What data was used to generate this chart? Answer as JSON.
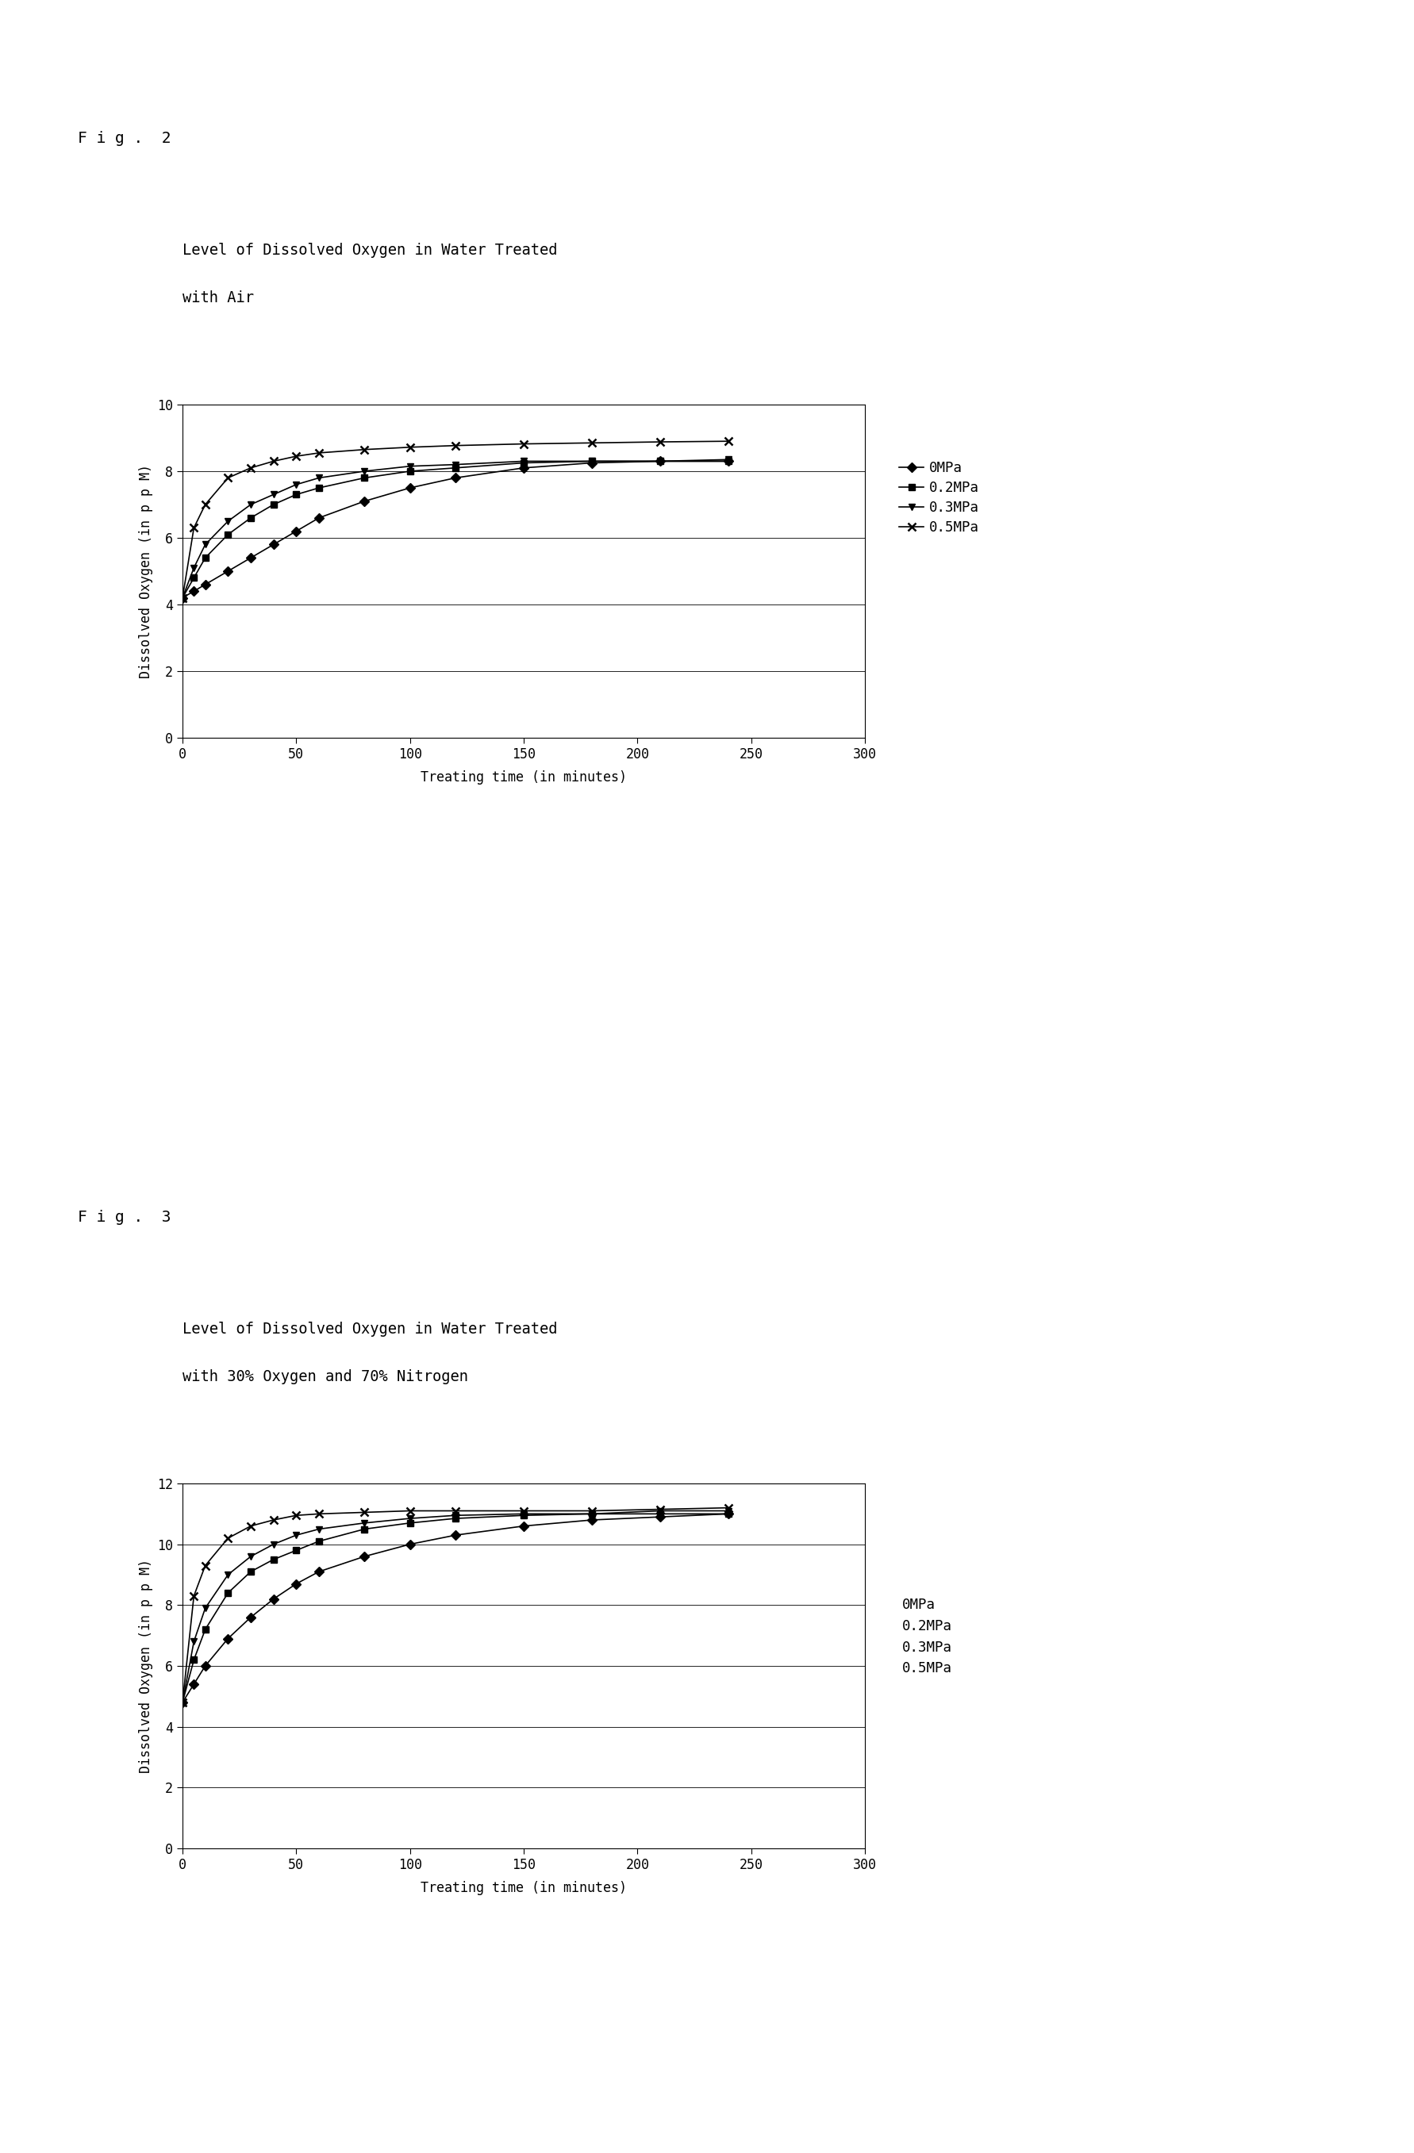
{
  "fig2_title_line1": "Level of Dissolved Oxygen in Water Treated",
  "fig2_title_line2": "with Air",
  "fig3_title_line1": "Level of Dissolved Oxygen in Water Treated",
  "fig3_title_line2": "with 30% Oxygen and 70% Nitrogen",
  "xlabel": "Treating time (in minutes)",
  "ylabel": "Dissolved Oxygen (in p p M)",
  "fig2_label": "F i g .  2",
  "fig3_label": "F i g .  3",
  "xlim": [
    0,
    300
  ],
  "xticks": [
    0,
    50,
    100,
    150,
    200,
    250,
    300
  ],
  "fig2_ylim": [
    0,
    10
  ],
  "fig2_yticks": [
    0,
    2,
    4,
    6,
    8,
    10
  ],
  "fig3_ylim": [
    0,
    12
  ],
  "fig3_yticks": [
    0,
    2,
    4,
    6,
    8,
    10,
    12
  ],
  "legend_labels": [
    "0MPa",
    "0.2MPa",
    "0.3MPa",
    "0.5MPa"
  ],
  "fig2_series": {
    "0MPa": {
      "x": [
        0,
        5,
        10,
        20,
        30,
        40,
        50,
        60,
        80,
        100,
        120,
        150,
        180,
        210,
        240
      ],
      "y": [
        4.2,
        4.4,
        4.6,
        5.0,
        5.4,
        5.8,
        6.2,
        6.6,
        7.1,
        7.5,
        7.8,
        8.1,
        8.25,
        8.3,
        8.3
      ],
      "marker": "D",
      "filled": true,
      "markersize": 6
    },
    "0.2MPa": {
      "x": [
        0,
        5,
        10,
        20,
        30,
        40,
        50,
        60,
        80,
        100,
        120,
        150,
        180,
        210,
        240
      ],
      "y": [
        4.2,
        4.8,
        5.4,
        6.1,
        6.6,
        7.0,
        7.3,
        7.5,
        7.8,
        8.0,
        8.1,
        8.25,
        8.3,
        8.3,
        8.3
      ],
      "marker": "s",
      "filled": true,
      "markersize": 6
    },
    "0.3MPa": {
      "x": [
        0,
        5,
        10,
        20,
        30,
        40,
        50,
        60,
        80,
        100,
        120,
        150,
        180,
        210,
        240
      ],
      "y": [
        4.2,
        5.1,
        5.8,
        6.5,
        7.0,
        7.3,
        7.6,
        7.8,
        8.0,
        8.15,
        8.2,
        8.3,
        8.3,
        8.3,
        8.35
      ],
      "marker": "v",
      "filled": true,
      "markersize": 6
    },
    "0.5MPa": {
      "x": [
        0,
        5,
        10,
        20,
        30,
        40,
        50,
        60,
        80,
        100,
        120,
        150,
        180,
        210,
        240
      ],
      "y": [
        4.2,
        6.3,
        7.0,
        7.8,
        8.1,
        8.3,
        8.45,
        8.55,
        8.65,
        8.72,
        8.77,
        8.82,
        8.85,
        8.88,
        8.9
      ],
      "marker": "x",
      "filled": false,
      "markersize": 7
    }
  },
  "fig3_series": {
    "0MPa": {
      "x": [
        0,
        5,
        10,
        20,
        30,
        40,
        50,
        60,
        80,
        100,
        120,
        150,
        180,
        210,
        240
      ],
      "y": [
        4.8,
        5.4,
        6.0,
        6.9,
        7.6,
        8.2,
        8.7,
        9.1,
        9.6,
        10.0,
        10.3,
        10.6,
        10.8,
        10.9,
        11.0
      ],
      "marker": "D",
      "filled": true,
      "markersize": 6
    },
    "0.2MPa": {
      "x": [
        0,
        5,
        10,
        20,
        30,
        40,
        50,
        60,
        80,
        100,
        120,
        150,
        180,
        210,
        240
      ],
      "y": [
        4.8,
        6.2,
        7.2,
        8.4,
        9.1,
        9.5,
        9.8,
        10.1,
        10.5,
        10.7,
        10.85,
        10.95,
        11.0,
        11.0,
        11.0
      ],
      "marker": "s",
      "filled": true,
      "markersize": 6
    },
    "0.3MPa": {
      "x": [
        0,
        5,
        10,
        20,
        30,
        40,
        50,
        60,
        80,
        100,
        120,
        150,
        180,
        210,
        240
      ],
      "y": [
        4.8,
        6.8,
        7.9,
        9.0,
        9.6,
        10.0,
        10.3,
        10.5,
        10.7,
        10.85,
        10.95,
        11.0,
        11.0,
        11.1,
        11.1
      ],
      "marker": "v",
      "filled": true,
      "markersize": 6
    },
    "0.5MPa": {
      "x": [
        0,
        5,
        10,
        20,
        30,
        40,
        50,
        60,
        80,
        100,
        120,
        150,
        180,
        210,
        240
      ],
      "y": [
        4.8,
        8.3,
        9.3,
        10.2,
        10.6,
        10.8,
        10.95,
        11.0,
        11.05,
        11.1,
        11.1,
        11.1,
        11.1,
        11.15,
        11.2
      ],
      "marker": "x",
      "filled": false,
      "markersize": 7
    }
  },
  "background_color": "#ffffff",
  "title_fontsize": 13.5,
  "axis_label_fontsize": 12,
  "tick_fontsize": 12,
  "legend_fontsize": 12.5,
  "fig_label_fontsize": 14,
  "linewidth": 1.2
}
